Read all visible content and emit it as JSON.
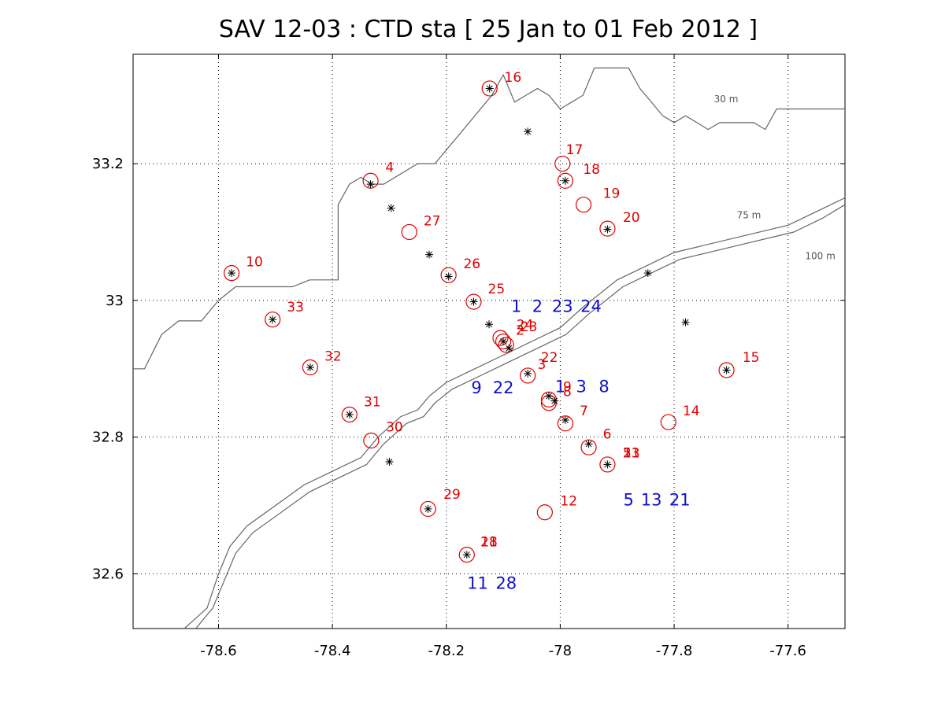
{
  "title": "SAV 12-03 : CTD  sta   [ 25 Jan to 01 Feb 2012 ]",
  "axes": {
    "xlim": [
      -78.75,
      -77.5
    ],
    "ylim": [
      32.52,
      33.36
    ],
    "x_ticks": [
      -78.6,
      -78.4,
      -78.2,
      -78,
      -77.8,
      -77.6
    ],
    "x_tick_labels": [
      "-78.6",
      "-78.4",
      "-78.2",
      "-78",
      "-77.8",
      "-77.6"
    ],
    "y_ticks": [
      32.6,
      32.8,
      33.0,
      33.2
    ],
    "y_tick_labels": [
      "32.6",
      "32.8",
      "33",
      "33.2"
    ],
    "grid": true
  },
  "contours": [
    {
      "label": "30 m",
      "label_at": [
        -77.73,
        33.29
      ],
      "points": [
        [
          -78.75,
          32.9
        ],
        [
          -78.73,
          32.9
        ],
        [
          -78.7,
          32.95
        ],
        [
          -78.67,
          32.97
        ],
        [
          -78.63,
          32.97
        ],
        [
          -78.6,
          33.0
        ],
        [
          -78.57,
          33.02
        ],
        [
          -78.47,
          33.02
        ],
        [
          -78.44,
          33.03
        ],
        [
          -78.39,
          33.03
        ],
        [
          -78.39,
          33.14
        ],
        [
          -78.37,
          33.17
        ],
        [
          -78.35,
          33.18
        ],
        [
          -78.33,
          33.17
        ],
        [
          -78.31,
          33.17
        ],
        [
          -78.29,
          33.18
        ],
        [
          -78.25,
          33.2
        ],
        [
          -78.22,
          33.2
        ],
        [
          -78.17,
          33.25
        ],
        [
          -78.12,
          33.3
        ],
        [
          -78.1,
          33.33
        ],
        [
          -78.08,
          33.29
        ],
        [
          -78.06,
          33.3
        ],
        [
          -78.04,
          33.31
        ],
        [
          -78.02,
          33.3
        ],
        [
          -78.0,
          33.28
        ],
        [
          -77.98,
          33.29
        ],
        [
          -77.96,
          33.3
        ],
        [
          -77.94,
          33.34
        ],
        [
          -77.9,
          33.34
        ],
        [
          -77.88,
          33.34
        ],
        [
          -77.86,
          33.31
        ],
        [
          -77.84,
          33.29
        ],
        [
          -77.82,
          33.27
        ],
        [
          -77.8,
          33.26
        ],
        [
          -77.78,
          33.27
        ],
        [
          -77.76,
          33.26
        ],
        [
          -77.74,
          33.25
        ],
        [
          -77.72,
          33.26
        ],
        [
          -77.7,
          33.26
        ],
        [
          -77.68,
          33.26
        ],
        [
          -77.66,
          33.26
        ],
        [
          -77.64,
          33.25
        ],
        [
          -77.62,
          33.28
        ],
        [
          -77.58,
          33.28
        ],
        [
          -77.5,
          33.28
        ]
      ]
    },
    {
      "label": "75 m",
      "label_at": [
        -77.69,
        33.12
      ],
      "points": [
        [
          -78.66,
          32.52
        ],
        [
          -78.62,
          32.55
        ],
        [
          -78.6,
          32.6
        ],
        [
          -78.58,
          32.64
        ],
        [
          -78.55,
          32.67
        ],
        [
          -78.5,
          32.7
        ],
        [
          -78.45,
          32.73
        ],
        [
          -78.4,
          32.75
        ],
        [
          -78.35,
          32.77
        ],
        [
          -78.32,
          32.8
        ],
        [
          -78.28,
          32.83
        ],
        [
          -78.25,
          32.84
        ],
        [
          -78.23,
          32.86
        ],
        [
          -78.2,
          32.88
        ],
        [
          -78.15,
          32.9
        ],
        [
          -78.1,
          32.92
        ],
        [
          -78.05,
          32.94
        ],
        [
          -78.0,
          32.96
        ],
        [
          -77.96,
          32.99
        ],
        [
          -77.93,
          33.01
        ],
        [
          -77.9,
          33.03
        ],
        [
          -77.85,
          33.05
        ],
        [
          -77.8,
          33.07
        ],
        [
          -77.7,
          33.09
        ],
        [
          -77.6,
          33.11
        ],
        [
          -77.55,
          33.13
        ],
        [
          -77.5,
          33.15
        ]
      ]
    },
    {
      "label": "100 m",
      "label_at": [
        -77.57,
        33.06
      ],
      "points": [
        [
          -78.64,
          32.52
        ],
        [
          -78.61,
          32.55
        ],
        [
          -78.59,
          32.59
        ],
        [
          -78.57,
          32.63
        ],
        [
          -78.54,
          32.66
        ],
        [
          -78.49,
          32.69
        ],
        [
          -78.44,
          32.72
        ],
        [
          -78.39,
          32.74
        ],
        [
          -78.34,
          32.76
        ],
        [
          -78.31,
          32.79
        ],
        [
          -78.27,
          32.82
        ],
        [
          -78.24,
          32.83
        ],
        [
          -78.22,
          32.85
        ],
        [
          -78.19,
          32.87
        ],
        [
          -78.14,
          32.89
        ],
        [
          -78.09,
          32.91
        ],
        [
          -78.04,
          32.93
        ],
        [
          -77.99,
          32.95
        ],
        [
          -77.95,
          32.98
        ],
        [
          -77.92,
          33.0
        ],
        [
          -77.89,
          33.02
        ],
        [
          -77.84,
          33.04
        ],
        [
          -77.79,
          33.06
        ],
        [
          -77.69,
          33.08
        ],
        [
          -77.59,
          33.1
        ],
        [
          -77.54,
          33.12
        ],
        [
          -77.5,
          33.14
        ]
      ]
    }
  ],
  "asterisks": [
    [
      -78.124,
      33.31
    ],
    [
      -78.057,
      33.247
    ],
    [
      -78.333,
      33.17
    ],
    [
      -78.297,
      33.135
    ],
    [
      -78.23,
      33.067
    ],
    [
      -77.991,
      33.175
    ],
    [
      -77.917,
      33.104
    ],
    [
      -78.577,
      33.04
    ],
    [
      -78.196,
      33.035
    ],
    [
      -78.152,
      32.998
    ],
    [
      -78.125,
      32.965
    ],
    [
      -78.1,
      32.94
    ],
    [
      -78.09,
      32.93
    ],
    [
      -77.846,
      33.04
    ],
    [
      -77.78,
      32.968
    ],
    [
      -78.505,
      32.972
    ],
    [
      -78.439,
      32.902
    ],
    [
      -78.057,
      32.893
    ],
    [
      -78.02,
      32.86
    ],
    [
      -78.01,
      32.853
    ],
    [
      -77.991,
      32.825
    ],
    [
      -77.95,
      32.79
    ],
    [
      -77.917,
      32.76
    ],
    [
      -78.37,
      32.833
    ],
    [
      -78.3,
      32.764
    ],
    [
      -78.232,
      32.695
    ],
    [
      -78.164,
      32.628
    ],
    [
      -77.708,
      32.898
    ]
  ],
  "circles": [
    [
      -78.124,
      33.31
    ],
    [
      -78.333,
      33.175
    ],
    [
      -77.996,
      33.2
    ],
    [
      -77.991,
      33.175
    ],
    [
      -77.959,
      33.14
    ],
    [
      -77.917,
      33.105
    ],
    [
      -78.265,
      33.1
    ],
    [
      -78.577,
      33.04
    ],
    [
      -78.196,
      33.037
    ],
    [
      -78.152,
      32.998
    ],
    [
      -78.505,
      32.972
    ],
    [
      -78.105,
      32.945
    ],
    [
      -78.1,
      32.94
    ],
    [
      -78.095,
      32.935
    ],
    [
      -78.439,
      32.902
    ],
    [
      -78.057,
      32.89
    ],
    [
      -78.02,
      32.855
    ],
    [
      -78.02,
      32.85
    ],
    [
      -77.991,
      32.82
    ],
    [
      -77.95,
      32.785
    ],
    [
      -77.917,
      32.76
    ],
    [
      -78.37,
      32.833
    ],
    [
      -78.332,
      32.795
    ],
    [
      -78.232,
      32.695
    ],
    [
      -78.027,
      32.69
    ],
    [
      -78.164,
      32.628
    ],
    [
      -77.81,
      32.822
    ],
    [
      -77.708,
      32.898
    ]
  ],
  "red_labels": [
    {
      "text": "16",
      "at": [
        -78.098,
        33.32
      ]
    },
    {
      "text": "17",
      "at": [
        -77.99,
        33.214
      ]
    },
    {
      "text": "4",
      "at": [
        -78.307,
        33.188
      ]
    },
    {
      "text": "18",
      "at": [
        -77.96,
        33.185
      ]
    },
    {
      "text": "19",
      "at": [
        -77.925,
        33.15
      ]
    },
    {
      "text": "20",
      "at": [
        -77.89,
        33.115
      ]
    },
    {
      "text": "27",
      "at": [
        -78.24,
        33.11
      ]
    },
    {
      "text": "10",
      "at": [
        -78.552,
        33.05
      ]
    },
    {
      "text": "26",
      "at": [
        -78.17,
        33.047
      ]
    },
    {
      "text": "25",
      "at": [
        -78.127,
        33.01
      ]
    },
    {
      "text": "33",
      "at": [
        -78.48,
        32.984
      ]
    },
    {
      "text": "24",
      "at": [
        -78.077,
        32.958
      ]
    },
    {
      "text": "23",
      "at": [
        -78.07,
        32.955
      ]
    },
    {
      "text": "2",
      "at": [
        -78.078,
        32.95
      ]
    },
    {
      "text": "32",
      "at": [
        -78.414,
        32.912
      ]
    },
    {
      "text": "22",
      "at": [
        -78.034,
        32.91
      ]
    },
    {
      "text": "3",
      "at": [
        -78.04,
        32.9
      ]
    },
    {
      "text": "15",
      "at": [
        -77.68,
        32.91
      ]
    },
    {
      "text": "9",
      "at": [
        -77.995,
        32.867
      ]
    },
    {
      "text": "8",
      "at": [
        -77.995,
        32.86
      ]
    },
    {
      "text": "31",
      "at": [
        -78.345,
        32.845
      ]
    },
    {
      "text": "14",
      "at": [
        -77.785,
        32.832
      ]
    },
    {
      "text": "7",
      "at": [
        -77.966,
        32.832
      ]
    },
    {
      "text": "30",
      "at": [
        -78.306,
        32.808
      ]
    },
    {
      "text": "6",
      "at": [
        -77.925,
        32.798
      ]
    },
    {
      "text": "5",
      "at": [
        -77.89,
        32.77
      ]
    },
    {
      "text": "13",
      "at": [
        -77.89,
        32.77
      ]
    },
    {
      "text": "21",
      "at": [
        -77.89,
        32.77
      ]
    },
    {
      "text": "29",
      "at": [
        -78.205,
        32.71
      ]
    },
    {
      "text": "12",
      "at": [
        -78.0,
        32.7
      ]
    },
    {
      "text": "11",
      "at": [
        -78.14,
        32.64
      ]
    },
    {
      "text": "28",
      "at": [
        -78.14,
        32.64
      ]
    }
  ],
  "blue_labels": [
    {
      "text": "1",
      "at": [
        -78.077,
        32.983
      ]
    },
    {
      "text": "2",
      "at": [
        -78.04,
        32.983
      ]
    },
    {
      "text": "23",
      "at": [
        -77.996,
        32.983
      ]
    },
    {
      "text": "24",
      "at": [
        -77.946,
        32.983
      ]
    },
    {
      "text": "9",
      "at": [
        -78.147,
        32.864
      ]
    },
    {
      "text": "22",
      "at": [
        -78.1,
        32.864
      ]
    },
    {
      "text": "1",
      "at": [
        -78.0,
        32.866
      ]
    },
    {
      "text": "3",
      "at": [
        -77.963,
        32.866
      ]
    },
    {
      "text": "8",
      "at": [
        -77.923,
        32.866
      ]
    },
    {
      "text": "5",
      "at": [
        -77.88,
        32.7
      ]
    },
    {
      "text": "13",
      "at": [
        -77.84,
        32.7
      ]
    },
    {
      "text": "21",
      "at": [
        -77.79,
        32.7
      ]
    },
    {
      "text": "11",
      "at": [
        -78.145,
        32.578
      ]
    },
    {
      "text": "28",
      "at": [
        -78.095,
        32.578
      ]
    }
  ]
}
